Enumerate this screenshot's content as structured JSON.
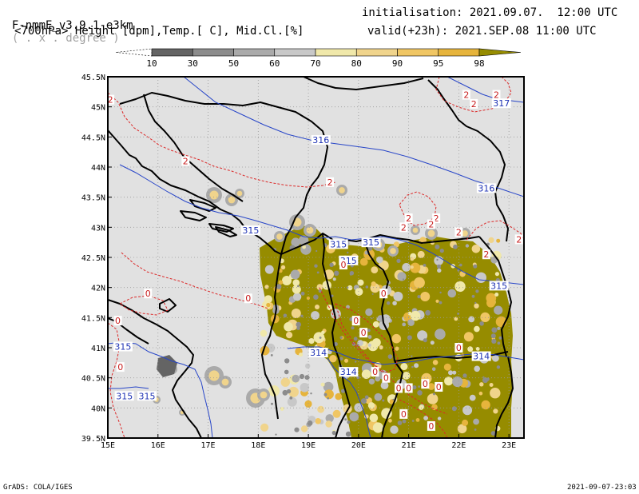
{
  "header": {
    "model": "F-nmmE_v3.9.1-e3km",
    "units_note": "( . x . degree )",
    "fields": "<700hPa> Height [dpm],Temp.[ C], Mid.Cl.[%]",
    "init": "initialisation: 2021.09.07.  12:00 UTC",
    "valid": "valid(+23h): 2021.SEP.08 11:00 UTC"
  },
  "colorbar": {
    "labels": [
      "10",
      "30",
      "50",
      "60",
      "70",
      "80",
      "90",
      "95",
      "98"
    ],
    "colors": [
      "#ffffff",
      "#646464",
      "#8c8c8c",
      "#aaaaaa",
      "#c8c8c8",
      "#f0e8aa",
      "#f0d48c",
      "#f0c664",
      "#e6b43c",
      "#968c00"
    ]
  },
  "map": {
    "background": "#e1e1e1",
    "lon_labels": [
      "15E",
      "16E",
      "17E",
      "18E",
      "19E",
      "20E",
      "21E",
      "22E",
      "23E"
    ],
    "lat_labels": [
      "39.5N",
      "40N",
      "40.5N",
      "41N",
      "41.5N",
      "42N",
      "42.5N",
      "43N",
      "43.5N",
      "44N",
      "44.5N",
      "45N",
      "45.5N"
    ],
    "height_labels": [
      {
        "text": "316",
        "lon": 19.25,
        "lat": 44.45
      },
      {
        "text": "316",
        "lon": 22.55,
        "lat": 43.65
      },
      {
        "text": "315",
        "lon": 17.85,
        "lat": 42.95
      },
      {
        "text": "315",
        "lon": 19.6,
        "lat": 42.72
      },
      {
        "text": "315",
        "lon": 20.25,
        "lat": 42.75
      },
      {
        "text": "315",
        "lon": 19.8,
        "lat": 42.45
      },
      {
        "text": "315",
        "lon": 22.8,
        "lat": 42.03
      },
      {
        "text": "315",
        "lon": 15.3,
        "lat": 41.02
      },
      {
        "text": "315",
        "lon": 15.33,
        "lat": 40.2
      },
      {
        "text": "315",
        "lon": 15.78,
        "lat": 40.2
      },
      {
        "text": "314",
        "lon": 19.2,
        "lat": 40.92
      },
      {
        "text": "314",
        "lon": 19.8,
        "lat": 40.6
      },
      {
        "text": "314",
        "lon": 22.45,
        "lat": 40.86
      },
      {
        "text": "317",
        "lon": 22.85,
        "lat": 45.06
      }
    ],
    "temp_labels": [
      {
        "text": "2",
        "lon": 22.15,
        "lat": 45.2
      },
      {
        "text": "2",
        "lon": 22.75,
        "lat": 45.2
      },
      {
        "text": "2",
        "lon": 22.3,
        "lat": 45.05
      },
      {
        "text": "2",
        "lon": 15.05,
        "lat": 45.12
      },
      {
        "text": "2",
        "lon": 16.55,
        "lat": 44.1
      },
      {
        "text": "2",
        "lon": 19.43,
        "lat": 43.75
      },
      {
        "text": "2",
        "lon": 21.0,
        "lat": 43.15
      },
      {
        "text": "2",
        "lon": 21.55,
        "lat": 43.15
      },
      {
        "text": "2",
        "lon": 20.9,
        "lat": 43.0
      },
      {
        "text": "2",
        "lon": 21.45,
        "lat": 43.05
      },
      {
        "text": "2",
        "lon": 22.0,
        "lat": 42.92
      },
      {
        "text": "2",
        "lon": 22.55,
        "lat": 42.55
      },
      {
        "text": "2",
        "lon": 23.2,
        "lat": 42.8
      },
      {
        "text": "0",
        "lon": 15.8,
        "lat": 41.9
      },
      {
        "text": "0",
        "lon": 17.8,
        "lat": 41.82
      },
      {
        "text": "0",
        "lon": 15.2,
        "lat": 41.45
      },
      {
        "text": "0",
        "lon": 15.25,
        "lat": 40.68
      },
      {
        "text": "0",
        "lon": 19.7,
        "lat": 42.38
      },
      {
        "text": "0",
        "lon": 20.5,
        "lat": 41.9
      },
      {
        "text": "0",
        "lon": 19.95,
        "lat": 41.45
      },
      {
        "text": "0",
        "lon": 20.1,
        "lat": 41.25
      },
      {
        "text": "0",
        "lon": 20.33,
        "lat": 40.6
      },
      {
        "text": "0",
        "lon": 20.55,
        "lat": 40.5
      },
      {
        "text": "0",
        "lon": 20.8,
        "lat": 40.33
      },
      {
        "text": "0",
        "lon": 21.0,
        "lat": 40.33
      },
      {
        "text": "0",
        "lon": 21.33,
        "lat": 40.4
      },
      {
        "text": "0",
        "lon": 21.6,
        "lat": 40.35
      },
      {
        "text": "0",
        "lon": 22.0,
        "lat": 41.0
      },
      {
        "text": "0",
        "lon": 20.9,
        "lat": 39.9
      },
      {
        "text": "0",
        "lon": 21.45,
        "lat": 39.7
      }
    ]
  },
  "footer": {
    "left": "GrADS: COLA/IGES",
    "right": "2021-09-07-23:03"
  }
}
